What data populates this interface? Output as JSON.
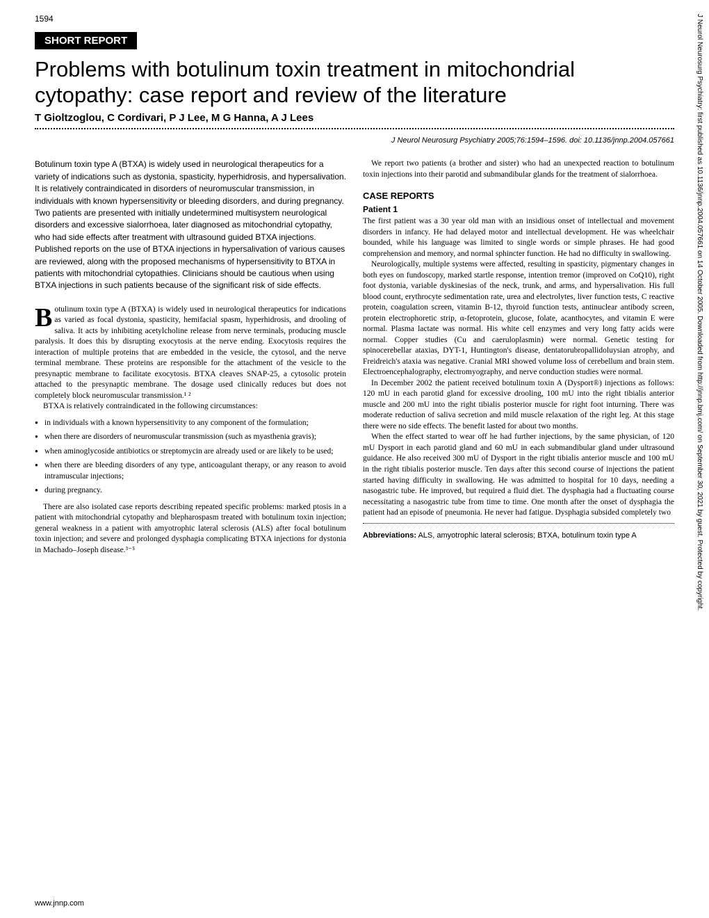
{
  "page_number": "1594",
  "badge": "SHORT REPORT",
  "title": "Problems with botulinum toxin treatment in mitochondrial cytopathy: case report and review of the literature",
  "authors": "T Gioltzoglou, C Cordivari, P J Lee, M G Hanna, A J Lees",
  "citation": "J Neurol Neurosurg Psychiatry 2005;76:1594–1596. doi: 10.1136/jnnp.2004.057661",
  "abstract": "Botulinum toxin type A (BTXA) is widely used in neurological therapeutics for a variety of indications such as dystonia, spasticity, hyperhidrosis, and hypersalivation. It is relatively contraindicated in disorders of neuromuscular transmission, in individuals with known hypersensitivity or bleeding disorders, and during pregnancy. Two patients are presented with initially undetermined multisystem neurological disorders and excessive sialorrhoea, later diagnosed as mitochondrial cytopathy, who had side effects after treatment with ultrasound guided BTXA injections. Published reports on the use of BTXA injections in hypersalivation of various causes are reviewed, along with the proposed mechanisms of hypersensitivity to BTXA in patients with mitochondrial cytopathies. Clinicians should be cautious when using BTXA injections in such patients because of the significant risk of side effects.",
  "intro_p1": "otulinum toxin type A (BTXA) is widely used in neurological therapeutics for indications as varied as focal dystonia, spasticity, hemifacial spasm, hyperhidrosis, and drooling of saliva. It acts by inhibiting acetylcholine release from nerve terminals, producing muscle paralysis. It does this by disrupting exocytosis at the nerve ending. Exocytosis requires the interaction of multiple proteins that are embedded in the vesicle, the cytosol, and the nerve terminal membrane. These proteins are responsible for the attachment of the vesicle to the presynaptic membrane to facilitate exocytosis. BTXA cleaves SNAP-25, a cytosolic protein attached to the presynaptic membrane. The dosage used clinically reduces but does not completely block neuromuscular transmission.¹ ²",
  "intro_p2": "BTXA is relatively contraindicated in the following circumstances:",
  "bullets": [
    "in individuals with a known hypersensitivity to any component of the formulation;",
    "when there are disorders of neuromuscular transmission (such as myasthenia gravis);",
    "when aminoglycoside antibiotics or streptomycin are already used or are likely to be used;",
    "when there are bleeding disorders of any type, anticoagulant therapy, or any reason to avoid intramuscular injections;",
    "during pregnancy."
  ],
  "intro_p3": "There are also isolated case reports describing repeated specific problems: marked ptosis in a patient with mitochondrial cytopathy and blepharospasm treated with botulinum toxin injection; general weakness in a patient with amyotrophic lateral sclerosis (ALS) after focal botulinum toxin injection; and severe and prolonged dysphagia complicating BTXA injections for dystonia in Machado–Joseph disease.³⁻⁵",
  "col2_intro": "We report two patients (a brother and sister) who had an unexpected reaction to botulinum toxin injections into their parotid and submandibular glands for the treatment of sialorrhoea.",
  "case_reports_head": "CASE REPORTS",
  "patient1_head": "Patient 1",
  "p1_para1": "The first patient was a 30 year old man with an insidious onset of intellectual and movement disorders in infancy. He had delayed motor and intellectual development. He was wheelchair bounded, while his language was limited to single words or simple phrases. He had good comprehension and memory, and normal sphincter function. He had no difficulty in swallowing.",
  "p1_para2": "Neurologically, multiple systems were affected, resulting in spasticity, pigmentary changes in both eyes on fundoscopy, marked startle response, intention tremor (improved on CoQ10), right foot dystonia, variable dyskinesias of the neck, trunk, and arms, and hypersalivation. His full blood count, erythrocyte sedimentation rate, urea and electrolytes, liver function tests, C reactive protein, coagulation screen, vitamin B-12, thyroid function tests, antinuclear antibody screen, protein electrophoretic strip, α-fetoprotein, glucose, folate, acanthocytes, and vitamin E were normal. Plasma lactate was normal. His white cell enzymes and very long fatty acids were normal. Copper studies (Cu and caeruloplasmin) were normal. Genetic testing for spinocerebellar ataxias, DYT-1, Huntington's disease, dentatorubropallidoluysian atrophy, and Freidreich's ataxia was negative. Cranial MRI showed volume loss of cerebellum and brain stem. Electroencephalography, electromyography, and nerve conduction studies were normal.",
  "p1_para3": "In December 2002 the patient received botulinum toxin A (Dysport®) injections as follows: 120 mU in each parotid gland for excessive drooling, 100 mU into the right tibialis anterior muscle and 200 mU into the right tibialis posterior muscle for right foot inturning. There was moderate reduction of saliva secretion and mild muscle relaxation of the right leg. At this stage there were no side effects. The benefit lasted for about two months.",
  "p1_para4": "When the effect started to wear off he had further injections, by the same physician, of 120 mU Dysport in each parotid gland and 60 mU in each submandibular gland under ultrasound guidance. He also received 300 mU of Dysport in the right tibialis anterior muscle and 100 mU in the right tibialis posterior muscle. Ten days after this second course of injections the patient started having difficulty in swallowing. He was admitted to hospital for 10 days, needing a nasogastric tube. He improved, but required a fluid diet. The dysphagia had a fluctuating course necessitating a nasogastric tube from time to time. One month after the onset of dysphagia the patient had an episode of pneumonia. He never had fatigue. Dysphagia subsided completely two",
  "abbrev_label": "Abbreviations:",
  "abbrev_text": " ALS, amyotrophic lateral sclerosis; BTXA, botulinum toxin type A",
  "footer_url": "www.jnnp.com",
  "sidebar": "J Neurol Neurosurg Psychiatry: first published as 10.1136/jnnp.2004.057661 on 14 October 2005. Downloaded from http://jnnp.bmj.com/ on September 30, 2021 by guest. Protected by copyright."
}
